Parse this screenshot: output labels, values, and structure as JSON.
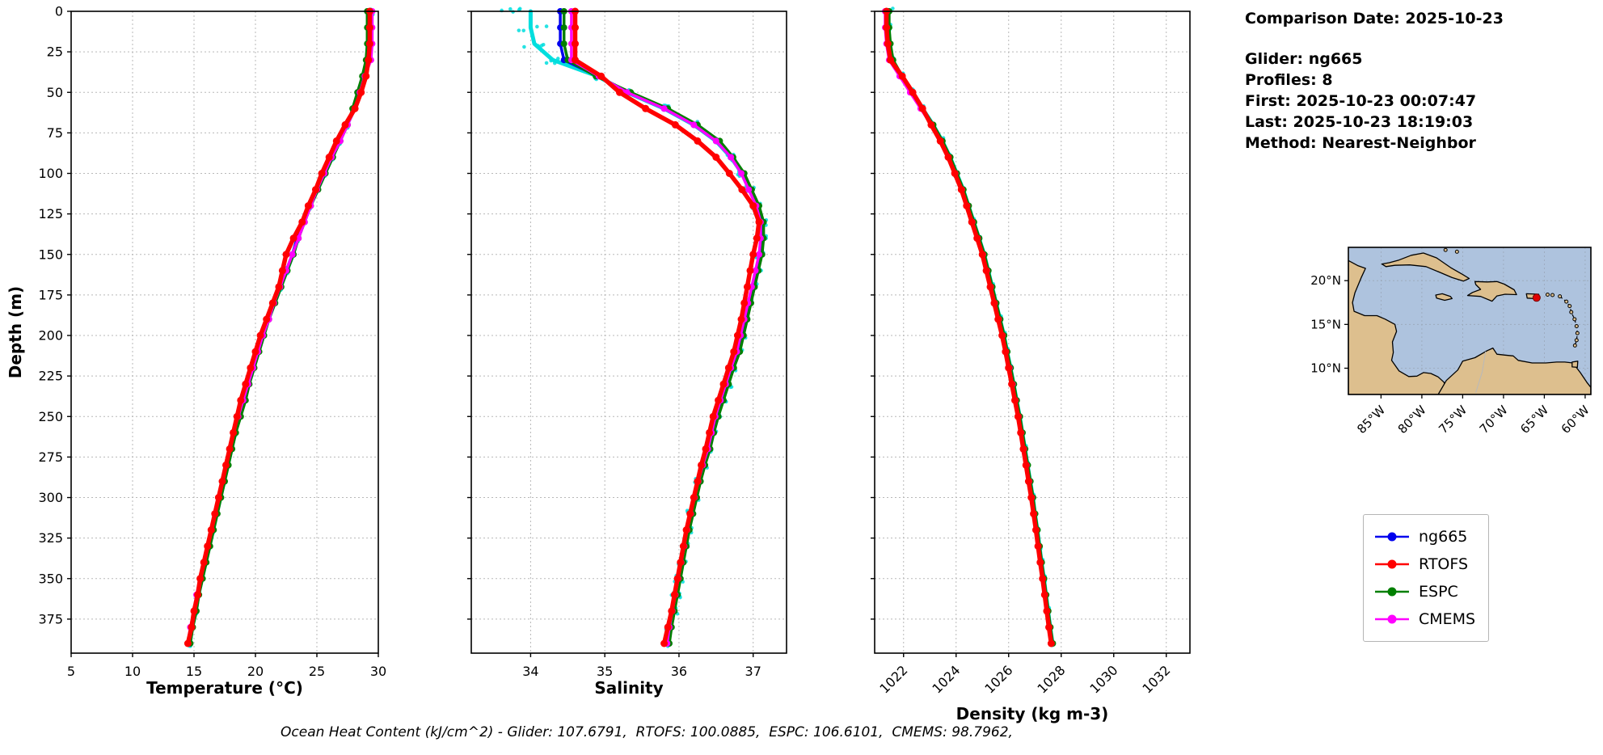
{
  "info_panel": {
    "date": "Comparison Date: 2025-10-23",
    "glider": "Glider: ng665",
    "profiles": "Profiles: 8",
    "first": "First: 2025-10-23 00:07:47",
    "last": "Last: 2025-10-23 18:19:03",
    "method": "Method: Nearest-Neighbor"
  },
  "footer": {
    "text": "Ocean Heat Content (kJ/cm^2) - Glider: 107.6791,  RTOFS: 100.0885,  ESPC: 106.6101,  CMEMS: 98.7962,"
  },
  "legend": {
    "entries": [
      {
        "label": "ng665",
        "color": "#0000ee"
      },
      {
        "label": "RTOFS",
        "color": "#ff0000"
      },
      {
        "label": "ESPC",
        "color": "#007f00"
      },
      {
        "label": "CMEMS",
        "color": "#ff00ff"
      }
    ]
  },
  "map": {
    "ocean_color": "#aec3de",
    "land_color": "#ddbf8e",
    "lat_labels": [
      "20°N",
      "15°N",
      "10°N"
    ],
    "lat_values": [
      20,
      15,
      10
    ],
    "lon_labels": [
      "85°W",
      "80°W",
      "75°W",
      "70°W",
      "65°W",
      "60°W"
    ],
    "lon_values": [
      -85,
      -80,
      -75,
      -70,
      -65,
      -60
    ],
    "extent": {
      "lon": [
        -89.0,
        -59.3
      ],
      "lat": [
        7.0,
        23.8
      ]
    },
    "marker": {
      "lon": -65.95,
      "lat": 18.05,
      "color": "#e00000"
    }
  },
  "chart_data": {
    "type": "line",
    "ylabel": "Depth (m)",
    "ylim": [
      0,
      396
    ],
    "yticks": [
      0,
      25,
      50,
      75,
      100,
      125,
      150,
      175,
      200,
      225,
      250,
      275,
      300,
      325,
      350,
      375
    ],
    "depths": [
      0,
      10,
      20,
      30,
      40,
      50,
      60,
      70,
      80,
      90,
      100,
      110,
      120,
      130,
      140,
      150,
      160,
      170,
      180,
      190,
      200,
      210,
      220,
      230,
      240,
      250,
      260,
      270,
      280,
      290,
      300,
      310,
      320,
      330,
      340,
      350,
      360,
      370,
      380,
      390
    ],
    "panels": [
      {
        "name": "temperature",
        "xlabel": "Temperature (°C)",
        "xlim": [
          5,
          30
        ],
        "xticks": [
          5,
          10,
          15,
          20,
          25,
          30
        ],
        "rotate_xticks": false,
        "series": [
          {
            "name": "glider-profiles",
            "color": "#00dede",
            "width": 5,
            "marker": 2.4,
            "scatter": {
              "surface": 0.3,
              "deep": 0.12,
              "decay": 15
            },
            "values": [
              29.45,
              29.45,
              29.44,
              29.3,
              28.85,
              28.45,
              28.05,
              27.45,
              26.85,
              26.25,
              25.65,
              25.05,
              24.45,
              23.95,
              23.45,
              23.05,
              22.55,
              22.05,
              21.55,
              21.05,
              20.65,
              20.25,
              19.85,
              19.45,
              19.05,
              18.65,
              18.35,
              18.05,
              17.75,
              17.45,
              17.15,
              16.85,
              16.55,
              16.25,
              15.95,
              15.65,
              15.35,
              15.15,
              14.85,
              14.65
            ]
          },
          {
            "name": "ng665",
            "color": "#0000ee",
            "width": 3.5,
            "marker": 4,
            "values": [
              29.4,
              29.4,
              29.4,
              29.3,
              28.8,
              28.4,
              28.0,
              27.4,
              26.8,
              26.2,
              25.6,
              25.0,
              24.4,
              23.9,
              23.4,
              23.0,
              22.5,
              22.0,
              21.5,
              21.0,
              20.6,
              20.2,
              19.8,
              19.4,
              19.0,
              18.6,
              18.3,
              18.0,
              17.7,
              17.4,
              17.1,
              16.8,
              16.5,
              16.2,
              15.9,
              15.6,
              15.3,
              15.1,
              14.8,
              14.6
            ]
          },
          {
            "name": "ESPC",
            "color": "#007f00",
            "width": 3.5,
            "marker": 4,
            "values": [
              29.1,
              29.1,
              29.1,
              29.0,
              28.7,
              28.3,
              27.9,
              27.5,
              26.9,
              26.3,
              25.7,
              25.1,
              24.5,
              24.0,
              23.5,
              23.1,
              22.6,
              22.1,
              21.6,
              21.1,
              20.7,
              20.3,
              19.9,
              19.5,
              19.2,
              18.8,
              18.4,
              18.1,
              17.8,
              17.5,
              17.2,
              16.9,
              16.6,
              16.3,
              16.0,
              15.7,
              15.4,
              15.2,
              14.9,
              14.7
            ]
          },
          {
            "name": "CMEMS",
            "color": "#ff00ff",
            "width": 3.5,
            "marker": 4,
            "values": [
              29.5,
              29.5,
              29.5,
              29.4,
              28.9,
              28.5,
              28.1,
              27.5,
              26.9,
              26.2,
              25.6,
              25.0,
              24.5,
              24.0,
              23.5,
              23.0,
              22.5,
              22.0,
              21.5,
              21.1,
              20.6,
              20.2,
              19.8,
              19.4,
              19.0,
              18.6,
              18.2,
              17.9,
              17.6,
              17.3,
              17.0,
              16.7,
              16.4,
              16.1,
              15.8,
              15.5,
              15.2,
              15.0,
              14.7,
              14.5
            ]
          },
          {
            "name": "RTOFS",
            "color": "#ff0000",
            "width": 5.5,
            "marker": 4.5,
            "values": [
              29.3,
              29.3,
              29.3,
              29.2,
              29.0,
              28.6,
              28.1,
              27.3,
              26.6,
              26.0,
              25.4,
              24.9,
              24.3,
              23.8,
              23.1,
              22.5,
              22.2,
              21.9,
              21.4,
              20.9,
              20.4,
              20.0,
              19.6,
              19.2,
              18.8,
              18.5,
              18.2,
              17.9,
              17.6,
              17.3,
              17.0,
              16.7,
              16.4,
              16.1,
              15.8,
              15.5,
              15.3,
              15.0,
              14.8,
              14.5
            ]
          }
        ]
      },
      {
        "name": "salinity",
        "xlabel": "Salinity",
        "xlim": [
          33.2,
          37.45
        ],
        "xticks": [
          34,
          35,
          36,
          37
        ],
        "rotate_xticks": false,
        "series": [
          {
            "name": "glider-profiles",
            "color": "#00dede",
            "width": 5,
            "marker": 2.4,
            "scatter": {
              "surface": 1.1,
              "deep": 0.12,
              "decay": 12
            },
            "values": [
              34.0,
              34.0,
              34.05,
              34.3,
              34.9,
              35.3,
              35.8,
              36.2,
              36.5,
              36.7,
              36.85,
              36.95,
              37.05,
              37.12,
              37.12,
              37.1,
              37.05,
              37.0,
              36.95,
              36.9,
              36.85,
              36.8,
              36.72,
              36.65,
              36.58,
              36.5,
              36.45,
              36.4,
              36.33,
              36.27,
              36.22,
              36.17,
              36.12,
              36.08,
              36.04,
              36.0,
              35.96,
              35.92,
              35.88,
              35.85
            ]
          },
          {
            "name": "ng665",
            "color": "#0000ee",
            "width": 3.5,
            "marker": 4,
            "values": [
              34.4,
              34.4,
              34.4,
              34.45,
              34.9,
              35.3,
              35.8,
              36.2,
              36.5,
              36.7,
              36.85,
              36.95,
              37.05,
              37.12,
              37.12,
              37.1,
              37.05,
              37.0,
              36.95,
              36.9,
              36.85,
              36.8,
              36.72,
              36.65,
              36.58,
              36.5,
              36.45,
              36.4,
              36.33,
              36.27,
              36.22,
              36.17,
              36.12,
              36.08,
              36.04,
              36.0,
              35.96,
              35.92,
              35.88,
              35.85
            ]
          },
          {
            "name": "ESPC",
            "color": "#007f00",
            "width": 3.5,
            "marker": 4,
            "values": [
              34.45,
              34.45,
              34.45,
              34.5,
              34.88,
              35.35,
              35.85,
              36.25,
              36.55,
              36.73,
              36.88,
              36.98,
              37.08,
              37.14,
              37.14,
              37.12,
              37.07,
              37.02,
              36.97,
              36.92,
              36.87,
              36.82,
              36.74,
              36.67,
              36.6,
              36.53,
              36.47,
              36.42,
              36.35,
              36.29,
              36.24,
              36.19,
              36.14,
              36.1,
              36.06,
              36.02,
              35.98,
              35.94,
              35.9,
              35.87
            ]
          },
          {
            "name": "CMEMS",
            "color": "#ff00ff",
            "width": 3.5,
            "marker": 4,
            "values": [
              34.55,
              34.55,
              34.55,
              34.55,
              34.92,
              35.3,
              35.8,
              36.2,
              36.5,
              36.7,
              36.84,
              36.94,
              37.04,
              37.1,
              37.1,
              37.08,
              37.03,
              36.98,
              36.93,
              36.88,
              36.83,
              36.78,
              36.7,
              36.63,
              36.56,
              36.49,
              36.44,
              36.39,
              36.32,
              36.26,
              36.21,
              36.16,
              36.11,
              36.07,
              36.03,
              35.99,
              35.95,
              35.91,
              35.87,
              35.84
            ]
          },
          {
            "name": "RTOFS",
            "color": "#ff0000",
            "width": 5.5,
            "marker": 4.5,
            "values": [
              34.6,
              34.6,
              34.6,
              34.6,
              34.95,
              35.2,
              35.55,
              35.95,
              36.25,
              36.5,
              36.68,
              36.85,
              37.0,
              37.08,
              37.05,
              37.0,
              36.96,
              36.92,
              36.88,
              36.84,
              36.79,
              36.74,
              36.67,
              36.6,
              36.53,
              36.46,
              36.41,
              36.36,
              36.3,
              36.25,
              36.2,
              36.15,
              36.1,
              36.06,
              36.02,
              35.98,
              35.94,
              35.9,
              35.85,
              35.8
            ]
          }
        ]
      },
      {
        "name": "density",
        "xlabel": "Density (kg m-3)",
        "xlim": [
          1020.9,
          1032.9
        ],
        "xticks": [
          1022,
          1024,
          1026,
          1028,
          1030,
          1032
        ],
        "rotate_xticks": true,
        "series": [
          {
            "name": "glider-profiles",
            "color": "#00dede",
            "width": 5,
            "marker": 2.4,
            "scatter": {
              "surface": 0.3,
              "deep": 0.1,
              "decay": 15
            },
            "values": [
              1021.42,
              1021.42,
              1021.47,
              1021.57,
              1021.92,
              1022.32,
              1022.72,
              1023.12,
              1023.47,
              1023.77,
              1024.02,
              1024.27,
              1024.47,
              1024.67,
              1024.87,
              1025.07,
              1025.22,
              1025.37,
              1025.52,
              1025.67,
              1025.82,
              1025.94,
              1026.07,
              1026.19,
              1026.3,
              1026.42,
              1026.52,
              1026.62,
              1026.72,
              1026.82,
              1026.92,
              1027.0,
              1027.09,
              1027.17,
              1027.25,
              1027.34,
              1027.42,
              1027.5,
              1027.58,
              1027.67
            ]
          },
          {
            "name": "ng665",
            "color": "#0000ee",
            "width": 3.5,
            "marker": 4,
            "values": [
              1021.4,
              1021.4,
              1021.45,
              1021.55,
              1021.9,
              1022.3,
              1022.7,
              1023.1,
              1023.45,
              1023.75,
              1024.0,
              1024.25,
              1024.45,
              1024.65,
              1024.85,
              1025.05,
              1025.2,
              1025.35,
              1025.5,
              1025.65,
              1025.8,
              1025.92,
              1026.05,
              1026.17,
              1026.28,
              1026.4,
              1026.5,
              1026.6,
              1026.7,
              1026.8,
              1026.9,
              1026.98,
              1027.07,
              1027.15,
              1027.23,
              1027.32,
              1027.4,
              1027.48,
              1027.56,
              1027.65
            ]
          },
          {
            "name": "ESPC",
            "color": "#007f00",
            "width": 3.5,
            "marker": 4,
            "values": [
              1021.45,
              1021.45,
              1021.5,
              1021.6,
              1021.95,
              1022.35,
              1022.73,
              1023.13,
              1023.48,
              1023.78,
              1024.03,
              1024.28,
              1024.48,
              1024.68,
              1024.88,
              1025.08,
              1025.23,
              1025.38,
              1025.53,
              1025.68,
              1025.83,
              1025.95,
              1026.08,
              1026.2,
              1026.31,
              1026.43,
              1026.53,
              1026.63,
              1026.73,
              1026.83,
              1026.93,
              1027.01,
              1027.1,
              1027.18,
              1027.26,
              1027.35,
              1027.43,
              1027.51,
              1027.59,
              1027.68
            ]
          },
          {
            "name": "CMEMS",
            "color": "#ff00ff",
            "width": 3.5,
            "marker": 4,
            "values": [
              1021.3,
              1021.3,
              1021.35,
              1021.45,
              1021.85,
              1022.25,
              1022.65,
              1023.05,
              1023.4,
              1023.7,
              1023.97,
              1024.22,
              1024.42,
              1024.62,
              1024.82,
              1025.02,
              1025.17,
              1025.32,
              1025.47,
              1025.62,
              1025.77,
              1025.9,
              1026.03,
              1026.15,
              1026.26,
              1026.38,
              1026.48,
              1026.58,
              1026.68,
              1026.78,
              1026.88,
              1026.96,
              1027.05,
              1027.13,
              1027.21,
              1027.3,
              1027.38,
              1027.46,
              1027.54,
              1027.63
            ]
          },
          {
            "name": "RTOFS",
            "color": "#ff0000",
            "width": 5.5,
            "marker": 4.5,
            "values": [
              1021.35,
              1021.35,
              1021.4,
              1021.5,
              1021.95,
              1022.35,
              1022.72,
              1023.05,
              1023.4,
              1023.7,
              1023.95,
              1024.2,
              1024.4,
              1024.6,
              1024.8,
              1025.0,
              1025.15,
              1025.3,
              1025.45,
              1025.6,
              1025.75,
              1025.88,
              1026.0,
              1026.12,
              1026.24,
              1026.36,
              1026.46,
              1026.56,
              1026.66,
              1026.76,
              1026.86,
              1026.95,
              1027.04,
              1027.12,
              1027.2,
              1027.29,
              1027.37,
              1027.45,
              1027.53,
              1027.62
            ]
          }
        ]
      }
    ]
  }
}
